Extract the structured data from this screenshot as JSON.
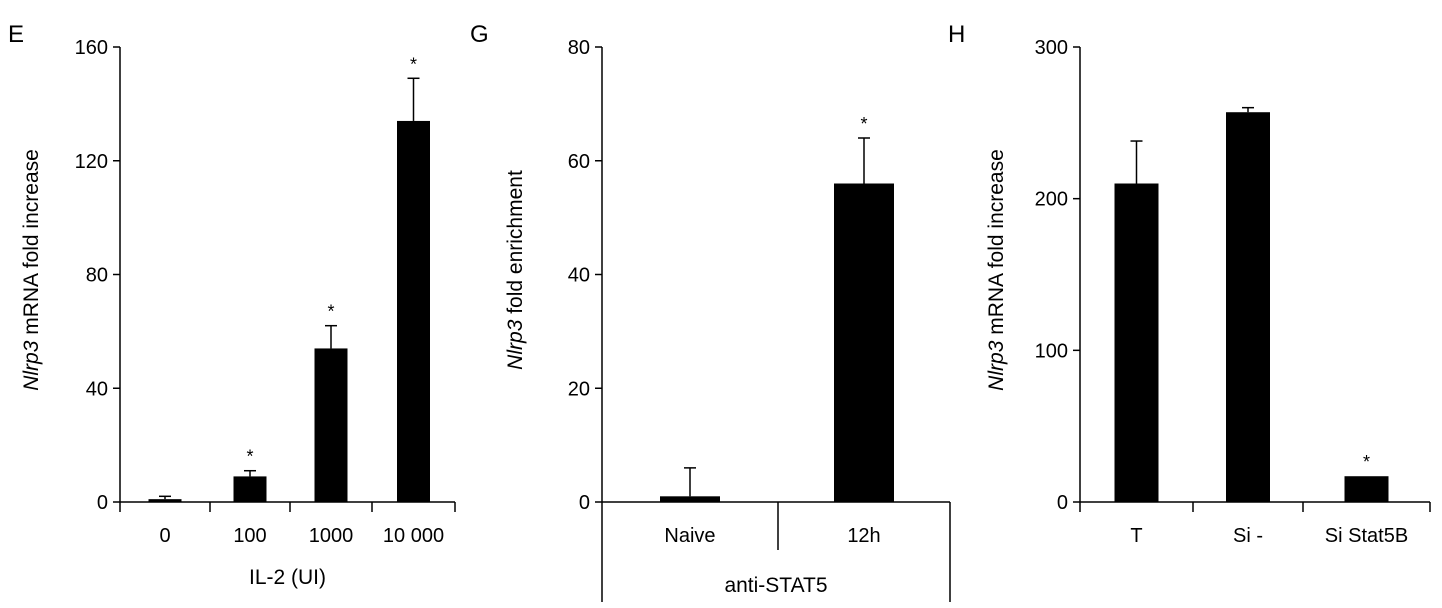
{
  "chart_data": [
    {
      "panel": "E",
      "type": "bar",
      "categories": [
        "0",
        "100",
        "1000",
        "10 000"
      ],
      "values": [
        1,
        9,
        54,
        134
      ],
      "errors": [
        1,
        2,
        8,
        15
      ],
      "significance": [
        "",
        "*",
        "*",
        "*"
      ],
      "xlabel": "IL-2 (UI)",
      "ylabel_italic": "Nlrp3",
      "ylabel_rest": " mRNA fold increase",
      "ylim": [
        0,
        160
      ],
      "yticks": [
        0,
        40,
        80,
        120,
        160
      ],
      "bar_color": "#000000"
    },
    {
      "panel": "G",
      "type": "bar",
      "categories": [
        "Naive",
        "12h"
      ],
      "values": [
        1,
        56
      ],
      "errors": [
        5,
        8
      ],
      "significance": [
        "",
        "*"
      ],
      "group_label": "anti-STAT5",
      "ylabel_italic": "Nlrp3",
      "ylabel_rest": " fold enrichment",
      "ylim": [
        0,
        80
      ],
      "yticks": [
        0,
        20,
        40,
        60,
        80
      ],
      "bar_color": "#000000"
    },
    {
      "panel": "H",
      "type": "bar",
      "categories": [
        "T",
        "Si -",
        "Si Stat5B"
      ],
      "values": [
        210,
        257,
        17
      ],
      "errors": [
        28,
        3,
        0
      ],
      "significance": [
        "",
        "",
        "*"
      ],
      "ylabel_italic": "Nlrp3",
      "ylabel_rest": " mRNA fold increase",
      "ylim": [
        0,
        300
      ],
      "yticks": [
        0,
        100,
        200,
        300
      ],
      "bar_color": "#000000"
    }
  ]
}
